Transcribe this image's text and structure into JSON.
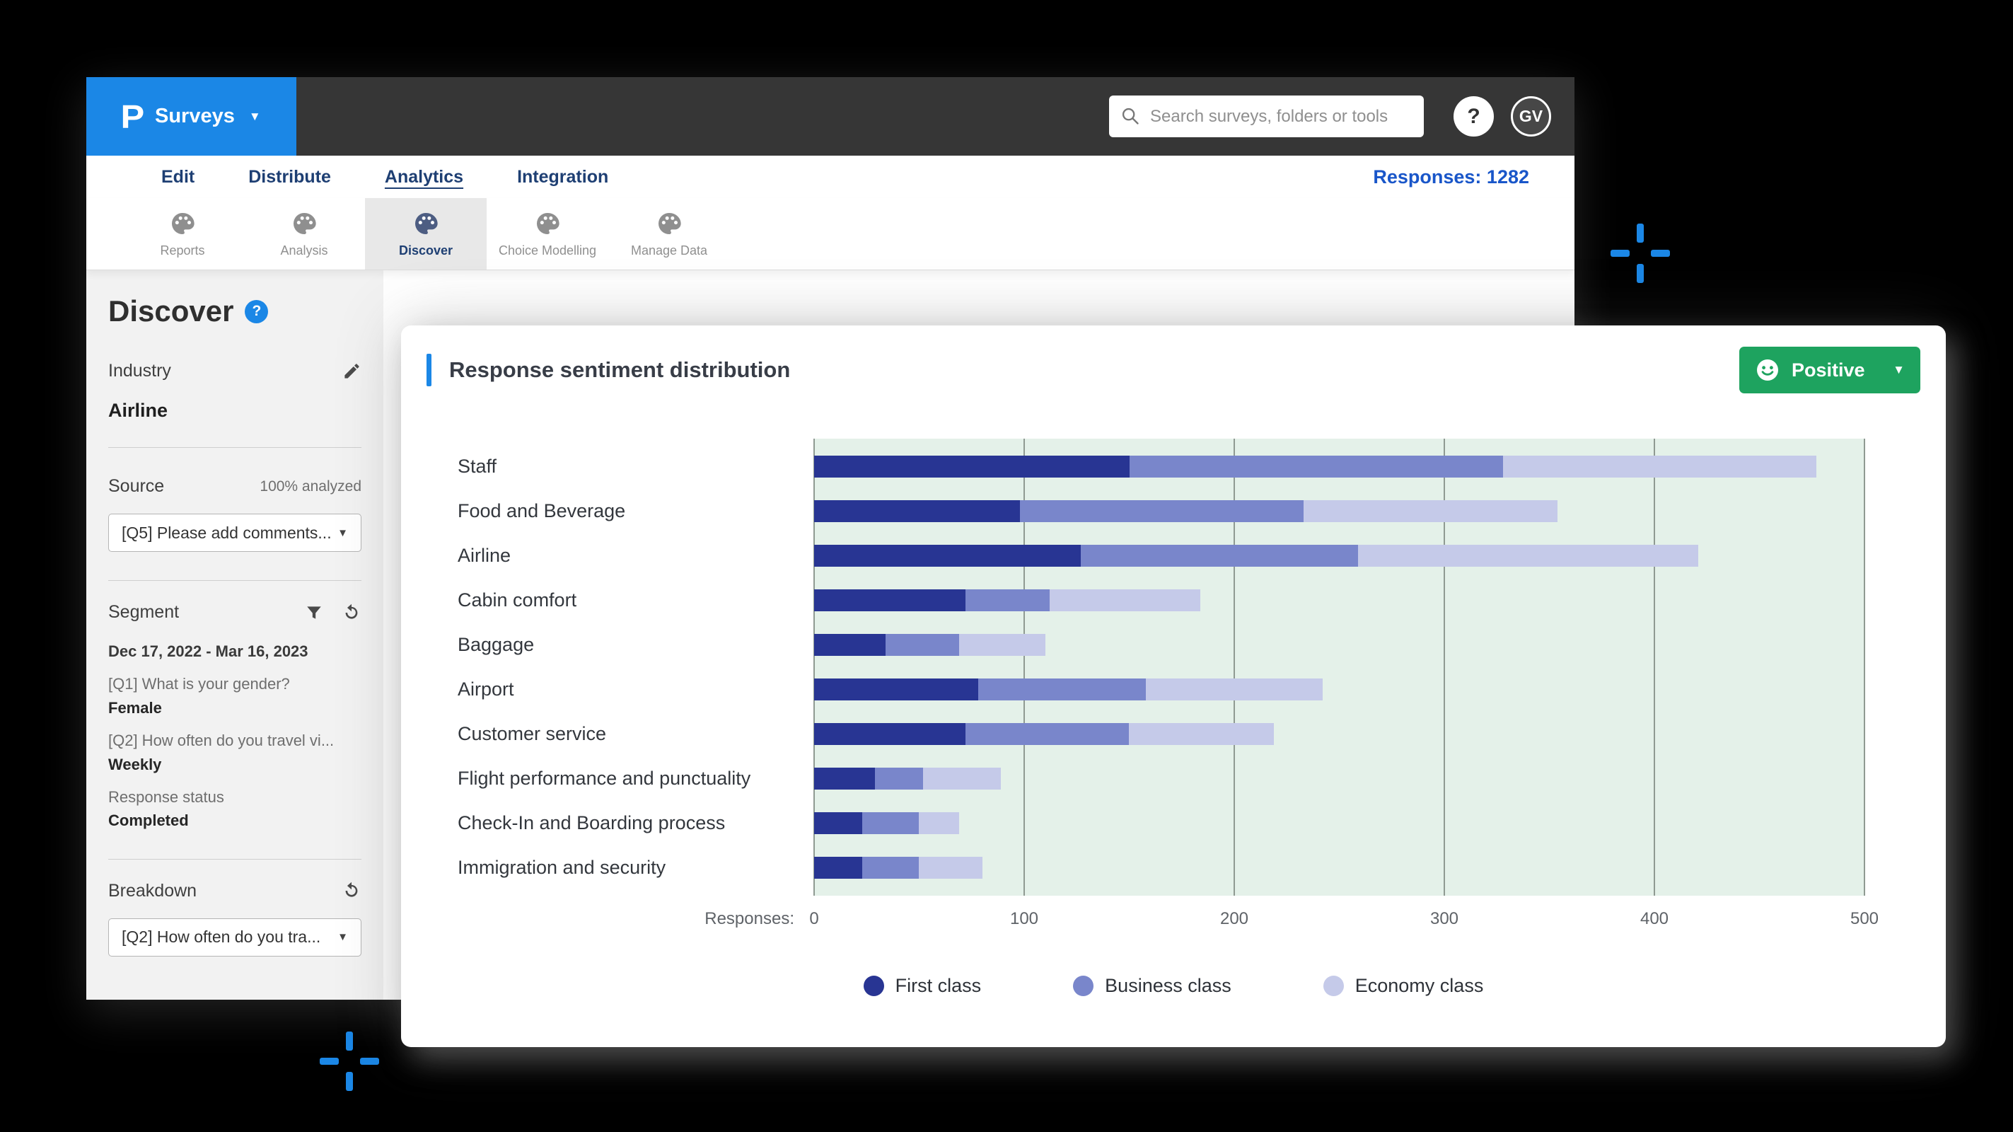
{
  "topbar": {
    "product_button": {
      "logo": "P",
      "label": "Surveys"
    },
    "search": {
      "placeholder": "Search surveys, folders or tools"
    },
    "help": "?",
    "avatar": "GV"
  },
  "nav": {
    "items": [
      {
        "label": "Edit"
      },
      {
        "label": "Distribute"
      },
      {
        "label": "Analytics",
        "active": true
      },
      {
        "label": "Integration"
      }
    ],
    "responses": "Responses: 1282"
  },
  "toolbar": {
    "tabs": [
      {
        "label": "Reports"
      },
      {
        "label": "Analysis"
      },
      {
        "label": "Discover",
        "active": true
      },
      {
        "label": "Choice Modelling"
      },
      {
        "label": "Manage Data"
      }
    ]
  },
  "sidebar": {
    "title": "Discover",
    "help_badge": "?",
    "industry": {
      "label": "Industry",
      "value": "Airline"
    },
    "source": {
      "label": "Source",
      "status": "100% analyzed",
      "dropdown": "[Q5] Please add comments..."
    },
    "segment": {
      "label": "Segment",
      "items": [
        {
          "text": "Dec 17, 2022 - Mar 16, 2023"
        },
        {
          "text": "[Q1] What is your gender?"
        },
        {
          "text": "Female"
        },
        {
          "text": "[Q2] How often do you  travel vi..."
        },
        {
          "text": "Weekly"
        },
        {
          "text": "Response status"
        },
        {
          "text": "Completed"
        }
      ]
    },
    "breakdown": {
      "label": "Breakdown",
      "dropdown": "[Q2] How often do you  tra..."
    }
  },
  "card": {
    "title": "Response sentiment distribution",
    "sentiment_button": {
      "label": "Positive"
    }
  },
  "colors": {
    "brand_blue": "#1b87e6",
    "positive_green": "#1ea35f",
    "plot_background": "#e4f1e9"
  },
  "chart_data": {
    "type": "bar",
    "orientation": "horizontal",
    "stacked": true,
    "title": "Response sentiment distribution",
    "categories": [
      "Staff",
      "Food and Beverage",
      "Airline",
      "Cabin comfort",
      "Baggage",
      "Airport",
      "Customer service",
      "Flight performance and punctuality",
      "Check-In and Boarding process",
      "Immigration and security"
    ],
    "series": [
      {
        "name": "First class",
        "color": "#283593",
        "values": [
          150,
          98,
          127,
          72,
          34,
          78,
          72,
          29,
          23,
          23
        ]
      },
      {
        "name": "Business class",
        "color": "#7986cb",
        "values": [
          178,
          135,
          132,
          40,
          35,
          80,
          78,
          23,
          27,
          27
        ]
      },
      {
        "name": "Economy class",
        "color": "#c5cae9",
        "values": [
          149,
          121,
          162,
          72,
          41,
          84,
          69,
          37,
          19,
          30
        ]
      }
    ],
    "xlabel": "Responses:",
    "x_ticks": [
      0,
      100,
      200,
      300,
      400,
      500
    ],
    "xlim": [
      0,
      500
    ],
    "grid": true,
    "legend_position": "bottom"
  }
}
